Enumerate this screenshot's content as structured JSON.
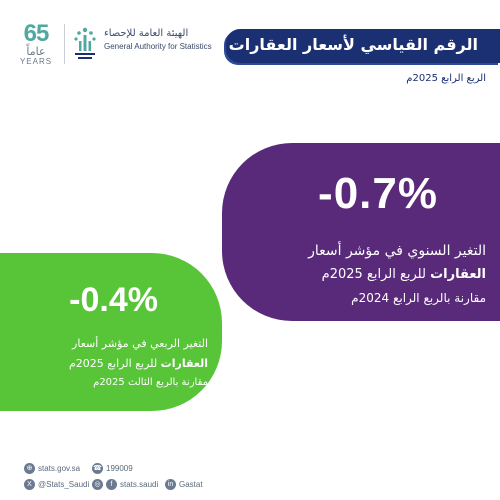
{
  "logo": {
    "anniversary_number": "65",
    "anniversary_arabic": "عاماً",
    "anniversary_english": "YEARS"
  },
  "authority": {
    "name_ar": "الهيئة العامة للإحصاء",
    "name_en": "General Authority for Statistics"
  },
  "header": {
    "title": "الرقم القياسي لأسعار العقارات",
    "subtitle": "الربع الرابع 2025م"
  },
  "annual": {
    "value": "-0.7%",
    "line1": "التغير السنوي في مؤشر أسعار",
    "line2_bold": "العقارات",
    "line2_rest": "للربع الرابع 2025م",
    "line3": "مقارنة بالربع الرابع 2024م"
  },
  "quarterly": {
    "value": "-0.4%",
    "line1": "التغير الربعي في مؤشر أسعار",
    "line2_bold": "العقارات",
    "line2_rest": "للربع الرابع 2025م",
    "line3": "مقارنة بالربع الثالث 2025م"
  },
  "footer": {
    "website": "stats.gov.sa",
    "phone": "199009",
    "twitter": "@Stats_Saudi",
    "social": "stats.saudi",
    "linkedin": "Gastat"
  },
  "colors": {
    "navy": "#1b2f73",
    "purple": "#592a7a",
    "green": "#58c437",
    "teal": "#4fa9a0"
  },
  "icons": {
    "website": "globe-icon",
    "phone": "phone-icon",
    "twitter": "twitter-icon",
    "instagram": "instagram-icon",
    "facebook": "facebook-icon",
    "linkedin": "linkedin-icon"
  }
}
